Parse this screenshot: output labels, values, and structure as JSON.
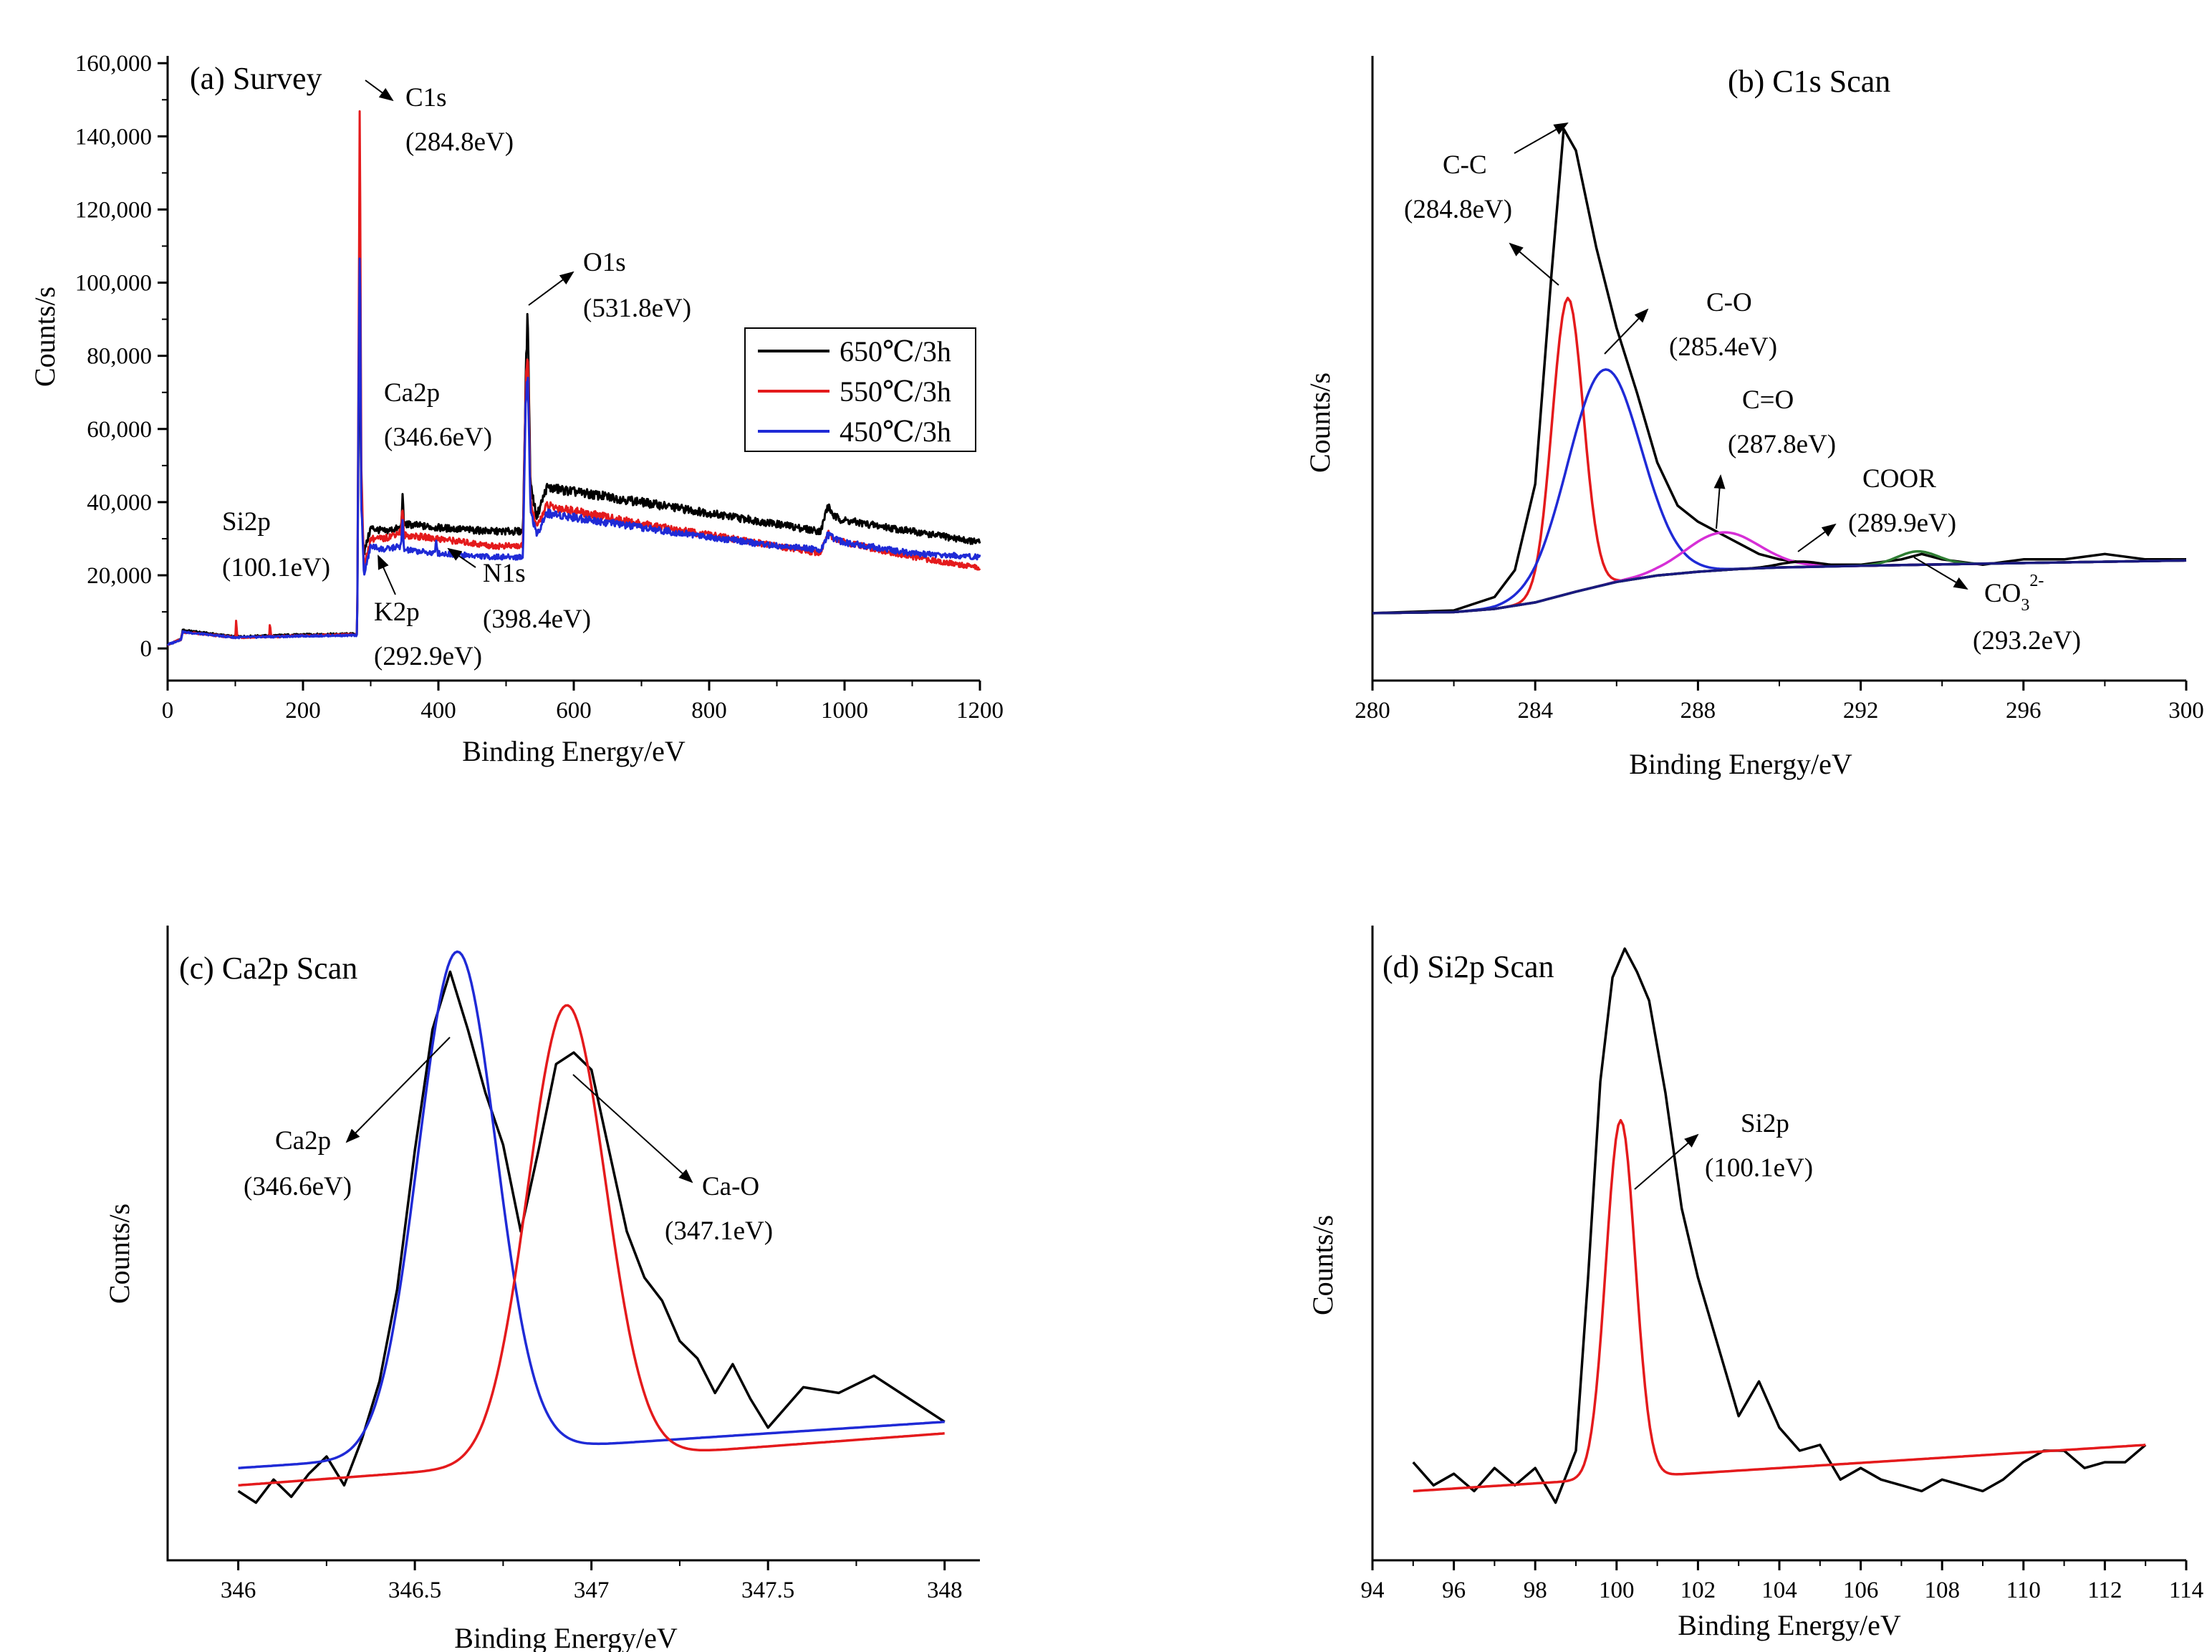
{
  "colors": {
    "black": "#000000",
    "red": "#e41a1c",
    "blue": "#1f2ad6",
    "magenta": "#d62fd6",
    "green": "#2e7d32",
    "navy": "#1a1a80"
  },
  "chart_data": [
    {
      "id": "a",
      "type": "line",
      "title": "(a) Survey",
      "xlabel": "Binding Energy/eV",
      "ylabel": "Counts/s",
      "xlim": [
        0,
        1200
      ],
      "ylim": [
        -8000,
        162000
      ],
      "xticks": [
        "0",
        "200",
        "400",
        "600",
        "800",
        "1000",
        "1200"
      ],
      "yticks": [
        "0",
        "20,000",
        "40,000",
        "60,000",
        "80,000",
        "100,000",
        "120,000",
        "140,000",
        "160,000"
      ],
      "legend": {
        "position": "center-right",
        "entries": [
          "650℃/3h",
          "550℃/3h",
          "450℃/3h"
        ]
      },
      "series": [
        {
          "name": "650℃/3h",
          "color": "black",
          "x": [
            0,
            20,
            22,
            100,
            150,
            200,
            280,
            282,
            284,
            286,
            290,
            300,
            320,
            345,
            347,
            349,
            400,
            480,
            525,
            529,
            532,
            536,
            545,
            560,
            700,
            900,
            965,
            975,
            985,
            1000,
            1100,
            1200
          ],
          "y": [
            1000,
            2500,
            5000,
            3200,
            3500,
            3800,
            4000,
            60000,
            90000,
            40000,
            26000,
            33000,
            32000,
            33000,
            42000,
            34000,
            33000,
            32000,
            32000,
            75000,
            92000,
            45000,
            36000,
            44000,
            40000,
            34000,
            32000,
            39000,
            36000,
            35000,
            32000,
            29000
          ]
        },
        {
          "name": "550℃/3h",
          "color": "red",
          "x": [
            0,
            20,
            22,
            100,
            101,
            103,
            150,
            151,
            153,
            200,
            280,
            282,
            284,
            286,
            290,
            300,
            320,
            345,
            347,
            349,
            400,
            480,
            525,
            529,
            532,
            536,
            545,
            560,
            700,
            900,
            965,
            975,
            985,
            1000,
            1100,
            1200
          ],
          "y": [
            1000,
            2500,
            4500,
            3000,
            8000,
            3000,
            3200,
            7000,
            3200,
            3500,
            3800,
            80000,
            155000,
            50000,
            22000,
            30000,
            30000,
            32000,
            39000,
            31000,
            30000,
            28000,
            28000,
            72000,
            83000,
            40000,
            33000,
            39000,
            34000,
            28000,
            26000,
            32000,
            30000,
            29000,
            25000,
            22000
          ]
        },
        {
          "name": "450℃/3h",
          "color": "blue",
          "x": [
            0,
            20,
            22,
            100,
            150,
            200,
            280,
            282,
            284,
            286,
            290,
            300,
            320,
            345,
            347,
            349,
            395,
            397,
            399,
            480,
            525,
            529,
            532,
            536,
            545,
            560,
            700,
            900,
            965,
            975,
            985,
            1000,
            1100,
            1200
          ],
          "y": [
            1000,
            2500,
            4500,
            3000,
            3200,
            3400,
            3600,
            70000,
            116000,
            40000,
            20000,
            28000,
            27000,
            28000,
            35000,
            27000,
            26000,
            30000,
            26000,
            25000,
            25000,
            68000,
            76000,
            38000,
            31000,
            37000,
            33000,
            28000,
            27000,
            31000,
            30000,
            29000,
            26000,
            25000
          ]
        }
      ],
      "annotations": [
        {
          "lines": [
            "C1s",
            "(284.8eV)"
          ]
        },
        {
          "lines": [
            "O1s",
            "(531.8eV)"
          ]
        },
        {
          "lines": [
            "Ca2p",
            "(346.6eV)"
          ]
        },
        {
          "lines": [
            "Si2p",
            "(100.1eV)"
          ]
        },
        {
          "lines": [
            "K2p",
            "(292.9eV)"
          ]
        },
        {
          "lines": [
            "N1s",
            "(398.4eV)"
          ]
        }
      ]
    },
    {
      "id": "b",
      "type": "line",
      "title": "(b) C1s Scan",
      "xlabel": "Binding Energy/eV",
      "ylabel": "Counts/s",
      "xlim": [
        280,
        300
      ],
      "ylim": [
        -10,
        100
      ],
      "xticks": [
        "280",
        "284",
        "288",
        "292",
        "296",
        "300"
      ],
      "series": [
        {
          "name": "C1s envelope",
          "color": "black",
          "x": [
            280,
            282,
            283,
            283.5,
            284,
            284.4,
            284.7,
            285,
            285.5,
            286,
            286.5,
            287,
            287.5,
            288,
            288.5,
            289,
            289.5,
            290,
            291,
            292,
            293,
            293.5,
            294,
            295,
            296,
            297,
            298,
            299,
            300
          ],
          "y": [
            2,
            2.5,
            5,
            10,
            26,
            65,
            92,
            88,
            70,
            55,
            43,
            30,
            22,
            19,
            17,
            15,
            13,
            12,
            11,
            11,
            12,
            13,
            12,
            11,
            12,
            12,
            13,
            12,
            12
          ]
        },
        {
          "name": "C-C",
          "color": "red",
          "peak": {
            "center": 284.8,
            "amplitude": 55,
            "width": 0.38
          }
        },
        {
          "name": "C-O",
          "color": "blue",
          "peak": {
            "center": 285.7,
            "amplitude": 40,
            "width": 0.9
          }
        },
        {
          "name": "C=O",
          "color": "magenta",
          "peak": {
            "center": 288.6,
            "amplitude": 7,
            "width": 0.9
          }
        },
        {
          "name": "COOR",
          "color": "black",
          "peak": {
            "center": 290.5,
            "amplitude": 1,
            "width": 0.5
          }
        },
        {
          "name": "CO3 2-",
          "color": "green",
          "peak": {
            "center": 293.4,
            "amplitude": 2.5,
            "width": 0.5
          }
        },
        {
          "name": "Background",
          "color": "navy",
          "x": [
            280,
            282,
            283,
            284,
            285,
            286,
            287,
            288,
            289,
            290,
            292,
            295,
            300
          ],
          "y": [
            2,
            2.2,
            2.8,
            4,
            6,
            7.8,
            9,
            9.7,
            10.2,
            10.5,
            10.8,
            11.2,
            11.8
          ]
        }
      ],
      "annotations": [
        {
          "lines": [
            "C-C",
            "(284.8eV)"
          ]
        },
        {
          "lines": [
            "C-O",
            "(285.4eV)"
          ]
        },
        {
          "lines": [
            "C=O",
            "(287.8eV)"
          ]
        },
        {
          "lines": [
            "COOR",
            "(289.9eV)"
          ]
        },
        {
          "lines": [
            "CO",
            "3",
            "2-",
            "(293.2eV)"
          ]
        }
      ]
    },
    {
      "id": "c",
      "type": "line",
      "title": "(c) Ca2p Scan",
      "xlabel": "Binding Energy/eV",
      "ylabel": "Counts/s",
      "xlim": [
        345.8,
        348.1
      ],
      "ylim": [
        -8,
        100
      ],
      "xticks": [
        "346",
        "346.5",
        "347",
        "347.5",
        "348"
      ],
      "series": [
        {
          "name": "Ca2p envelope",
          "color": "black",
          "x": [
            346.0,
            346.05,
            346.1,
            346.15,
            346.2,
            346.25,
            346.3,
            346.35,
            346.4,
            346.45,
            346.5,
            346.55,
            346.6,
            346.65,
            346.7,
            346.75,
            346.8,
            346.85,
            346.9,
            346.95,
            347.0,
            347.05,
            347.1,
            347.15,
            347.2,
            347.25,
            347.3,
            347.35,
            347.4,
            347.45,
            347.5,
            347.6,
            347.7,
            347.8,
            347.9,
            348.0
          ],
          "y": [
            3,
            1,
            5,
            2,
            6,
            9,
            4,
            12,
            22,
            38,
            62,
            83,
            93,
            83,
            72,
            63,
            48,
            62,
            77,
            79,
            76,
            62,
            48,
            40,
            36,
            29,
            26,
            20,
            25,
            19,
            14,
            21,
            20,
            23,
            19,
            15
          ]
        },
        {
          "name": "Ca2p",
          "color": "blue",
          "peak": {
            "center": 346.62,
            "amplitude": 87,
            "width": 0.11
          },
          "baseline": [
            7,
            15
          ]
        },
        {
          "name": "Ca-O",
          "color": "red",
          "peak": {
            "center": 346.93,
            "amplitude": 79,
            "width": 0.11
          },
          "baseline": [
            4,
            13
          ]
        }
      ],
      "annotations": [
        {
          "lines": [
            "Ca2p",
            "(346.6eV)"
          ]
        },
        {
          "lines": [
            "Ca-O",
            "(347.1eV)"
          ]
        }
      ]
    },
    {
      "id": "d",
      "type": "line",
      "title": "(d) Si2p Scan",
      "xlabel": "Binding Energy/eV",
      "ylabel": "Counts/s",
      "xlim": [
        94,
        114
      ],
      "ylim": [
        -8,
        100
      ],
      "xticks": [
        "94",
        "96",
        "98",
        "100",
        "102",
        "104",
        "106",
        "108",
        "110",
        "112",
        "114"
      ],
      "series": [
        {
          "name": "Si2p envelope",
          "color": "black",
          "x": [
            95,
            95.5,
            96,
            96.5,
            97,
            97.5,
            98,
            98.5,
            99,
            99.3,
            99.6,
            99.9,
            100.2,
            100.5,
            100.8,
            101.2,
            101.6,
            102,
            102.5,
            103,
            103.5,
            104,
            104.5,
            105,
            105.5,
            106,
            106.5,
            107,
            107.5,
            108,
            108.5,
            109,
            109.5,
            110,
            110.5,
            111,
            111.5,
            112,
            112.5,
            113
          ],
          "y": [
            8,
            4,
            6,
            3,
            7,
            4,
            7,
            1,
            10,
            40,
            74,
            92,
            97,
            93,
            88,
            72,
            52,
            40,
            28,
            16,
            22,
            14,
            10,
            11,
            5,
            7,
            5,
            4,
            3,
            5,
            4,
            3,
            5,
            8,
            10,
            10,
            7,
            8,
            8,
            11
          ]
        },
        {
          "name": "Si2p",
          "color": "red",
          "peak": {
            "center": 100.1,
            "amplitude": 62,
            "width": 0.36
          },
          "baseline": [
            3,
            11
          ]
        }
      ],
      "annotations": [
        {
          "lines": [
            "Si2p",
            "(100.1eV)"
          ]
        }
      ]
    }
  ]
}
